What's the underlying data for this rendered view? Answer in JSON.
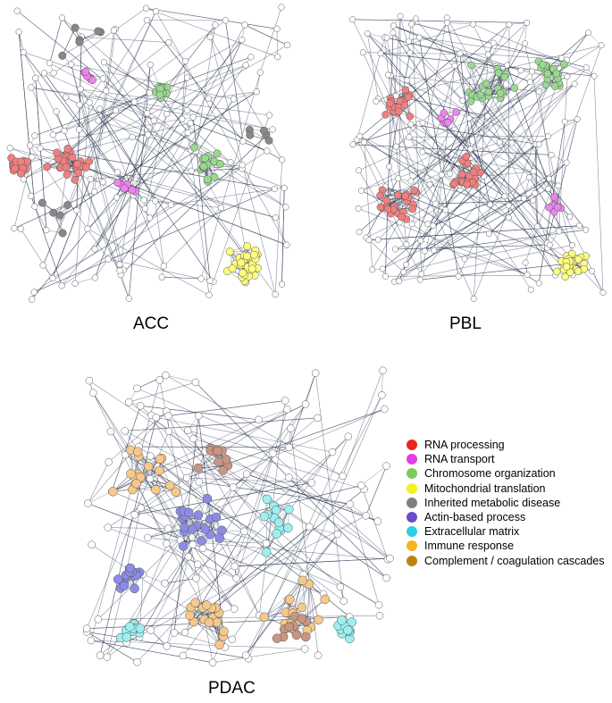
{
  "panels": [
    {
      "id": "acc",
      "label": "ACC",
      "clusters": [
        {
          "category": "rna_processing",
          "count": 60
        },
        {
          "category": "rna_transport",
          "count": 14
        },
        {
          "category": "chromosome_organization",
          "count": 32
        },
        {
          "category": "mitochondrial_translation",
          "count": 38
        },
        {
          "category": "inherited_metabolic_disease",
          "count": 16
        }
      ]
    },
    {
      "id": "pbl",
      "label": "PBL",
      "clusters": [
        {
          "category": "rna_processing",
          "count": 70
        },
        {
          "category": "rna_transport",
          "count": 14
        },
        {
          "category": "chromosome_organization",
          "count": 40
        },
        {
          "category": "mitochondrial_translation",
          "count": 32
        }
      ]
    },
    {
      "id": "pdac",
      "label": "PDAC",
      "clusters": [
        {
          "category": "actin_based_process",
          "count": 38
        },
        {
          "category": "extracellular_matrix",
          "count": 40
        },
        {
          "category": "immune_response",
          "count": 56
        },
        {
          "category": "complement_coagulation_cascades",
          "count": 22
        }
      ]
    }
  ],
  "legend": [
    {
      "category": "rna_processing",
      "label": "RNA processing",
      "color": "#e8261e"
    },
    {
      "category": "rna_transport",
      "label": "RNA transport",
      "color": "#e83ce8"
    },
    {
      "category": "chromosome_organization",
      "label": "Chromosome organization",
      "color": "#7dc95e"
    },
    {
      "category": "mitochondrial_translation",
      "label": "Mitochondrial translation",
      "color": "#f2f218"
    },
    {
      "category": "inherited_metabolic_disease",
      "label": "Inherited metabolic disease",
      "color": "#808080"
    },
    {
      "category": "actin_based_process",
      "label": "Actin-based process",
      "color": "#6a4ec9"
    },
    {
      "category": "extracellular_matrix",
      "label": "Extracellular matrix",
      "color": "#28d0e6"
    },
    {
      "category": "immune_response",
      "label": "Immune response",
      "color": "#f5b51e"
    },
    {
      "category": "complement_coagulation_cascades",
      "label": "Complement / coagulation cascades",
      "color": "#b8860b"
    }
  ],
  "node_fill": {
    "rna_processing": "#f08080",
    "rna_transport": "#ee82ee",
    "chromosome_organization": "#98d98e",
    "mitochondrial_translation": "#ffff80",
    "inherited_metabolic_disease": "#888888",
    "actin_based_process": "#8c8ce6",
    "extracellular_matrix": "#9deff0",
    "immune_response": "#f5c88c",
    "complement_coagulation_cascades": "#c89683",
    "unclassified": "#ffffff"
  },
  "edge_color": "#2a3550"
}
